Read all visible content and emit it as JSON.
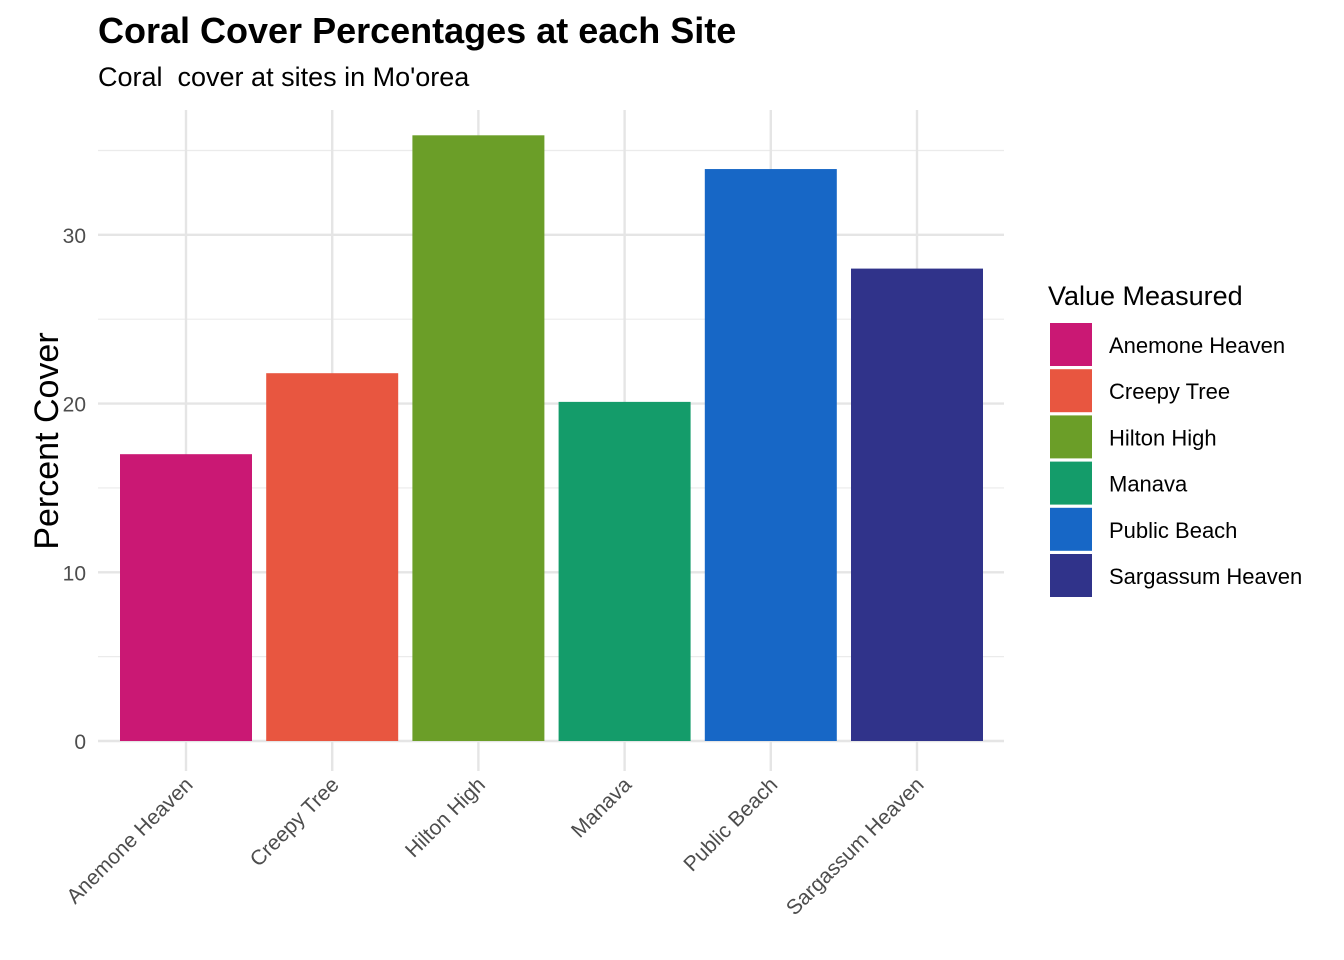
{
  "chart_data": {
    "type": "bar",
    "title": "Coral Cover Percentages at each Site",
    "subtitle": "Coral  cover at sites in Mo'orea",
    "xlabel": "",
    "ylabel": "Percent Cover",
    "categories": [
      "Anemone Heaven",
      "Creepy Tree",
      "Hilton High",
      "Manava",
      "Public Beach",
      "Sargassum Heaven"
    ],
    "values": [
      17.0,
      21.8,
      35.9,
      20.1,
      33.9,
      28.0
    ],
    "colors": [
      "#CA1874",
      "#E85640",
      "#6B9E28",
      "#149C6A",
      "#1767C6",
      "#30338A"
    ],
    "ylim": [
      0,
      37.4
    ],
    "yticks": [
      0,
      10,
      20,
      30
    ],
    "grid": true,
    "legend": {
      "title": "Value Measured",
      "placement": "right",
      "entries": [
        "Anemone Heaven",
        "Creepy Tree",
        "Hilton High",
        "Manava",
        "Public Beach",
        "Sargassum Heaven"
      ]
    }
  }
}
